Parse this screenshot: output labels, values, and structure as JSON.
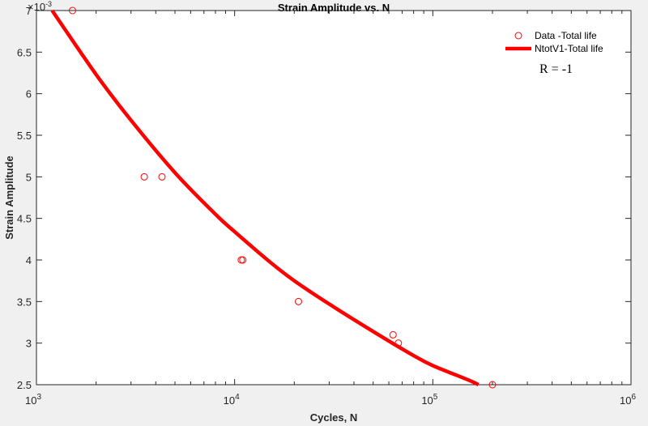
{
  "chart_data": {
    "type": "scatter",
    "title": "Strain Amplitude vs. N",
    "xlabel": "Cycles, N",
    "ylabel": "Strain Amplitude",
    "x_scale": "log",
    "xlim": [
      1000,
      1000000
    ],
    "ylim": [
      0.0025,
      0.007
    ],
    "y_exponent_label": "×10",
    "y_exponent_value": "-3",
    "x_tick_values": [
      1000,
      10000,
      100000,
      1000000
    ],
    "x_tick_bases": [
      "10",
      "10",
      "10",
      "10"
    ],
    "x_tick_exps": [
      "3",
      "4",
      "5",
      "6"
    ],
    "y_tick_values": [
      0.0025,
      0.003,
      0.0035,
      0.004,
      0.0045,
      0.005,
      0.0055,
      0.006,
      0.0065,
      0.007
    ],
    "y_tick_labels": [
      "2.5",
      "3",
      "3.5",
      "4",
      "4.5",
      "5",
      "5.5",
      "6",
      "6.5",
      "7"
    ],
    "grid": false,
    "legend_position": "top-right",
    "series": [
      {
        "name": "Data -Total life",
        "kind": "markers",
        "color": "#ff0000",
        "x": [
          1520,
          3500,
          4300,
          10800,
          11000,
          21000,
          63000,
          67000,
          200000
        ],
        "y": [
          0.007,
          0.005,
          0.005,
          0.004,
          0.004,
          0.0035,
          0.0031,
          0.003,
          0.0025
        ]
      },
      {
        "name": "NtotV1-Total life",
        "kind": "line",
        "color": "#ff0000",
        "x": [
          1200,
          2000,
          3000,
          5000,
          8000,
          10000,
          15000,
          20000,
          30000,
          50000,
          80000,
          100000,
          150000,
          170000
        ],
        "y": [
          0.007,
          0.00623,
          0.00568,
          0.00505,
          0.00455,
          0.00434,
          0.00398,
          0.00375,
          0.00347,
          0.00314,
          0.00285,
          0.00273,
          0.00256,
          0.0025
        ]
      }
    ],
    "annotation": "R = -1"
  }
}
